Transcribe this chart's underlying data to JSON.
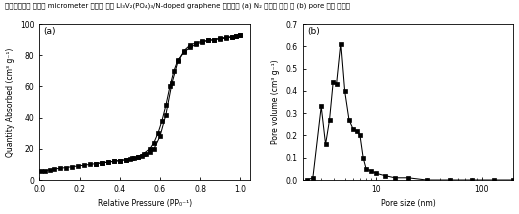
{
  "plot_a": {
    "label": "(a)",
    "xlabel": "Relative Pressure (PP₀⁻¹)",
    "ylabel": "Quantity Absorbed (cm³ g⁻¹)",
    "xlim": [
      0.0,
      1.05
    ],
    "ylim": [
      0,
      100
    ],
    "xticks": [
      0.0,
      0.2,
      0.4,
      0.6,
      0.8,
      1.0
    ],
    "yticks": [
      0,
      20,
      40,
      60,
      80,
      100
    ],
    "adsorption_x": [
      0.01,
      0.03,
      0.05,
      0.07,
      0.1,
      0.13,
      0.16,
      0.19,
      0.22,
      0.25,
      0.28,
      0.31,
      0.34,
      0.37,
      0.4,
      0.43,
      0.46,
      0.49,
      0.52,
      0.55,
      0.57,
      0.59,
      0.61,
      0.63,
      0.65,
      0.67,
      0.69,
      0.72,
      0.75,
      0.78,
      0.81,
      0.84,
      0.87,
      0.9,
      0.93,
      0.96,
      0.98,
      1.0
    ],
    "adsorption_y": [
      5.5,
      6.0,
      6.5,
      7.0,
      7.5,
      8.0,
      8.5,
      9.0,
      9.5,
      10.0,
      10.5,
      11.0,
      11.5,
      12.0,
      12.5,
      13.0,
      14.0,
      15.0,
      17.0,
      20.0,
      24.0,
      30.0,
      38.0,
      48.0,
      60.0,
      70.0,
      77.0,
      82.0,
      85.0,
      87.0,
      88.5,
      89.5,
      90.0,
      91.0,
      91.5,
      92.0,
      92.5,
      93.0
    ],
    "desorption_x": [
      1.0,
      0.98,
      0.96,
      0.93,
      0.9,
      0.87,
      0.84,
      0.81,
      0.78,
      0.75,
      0.72,
      0.69,
      0.66,
      0.63,
      0.6,
      0.57,
      0.55,
      0.53,
      0.51,
      0.49,
      0.47,
      0.45,
      0.43,
      0.4,
      0.37,
      0.34,
      0.31,
      0.28
    ],
    "desorption_y": [
      93.0,
      92.5,
      91.8,
      91.0,
      90.5,
      90.0,
      89.5,
      89.0,
      88.0,
      86.5,
      83.0,
      76.0,
      62.0,
      42.0,
      28.0,
      20.0,
      18.0,
      16.5,
      15.5,
      14.5,
      14.0,
      13.5,
      13.0,
      12.5,
      12.0,
      11.5,
      11.0,
      10.5
    ]
  },
  "plot_b": {
    "label": "(b)",
    "xlabel": "Pore size (nm)",
    "ylabel": "Pore volume (cm³ g⁻¹)",
    "xlim": [
      2,
      200
    ],
    "ylim": [
      0.0,
      0.7
    ],
    "yticks": [
      0.0,
      0.1,
      0.2,
      0.3,
      0.4,
      0.5,
      0.6,
      0.7
    ],
    "pore_x": [
      2.2,
      2.5,
      3.0,
      3.3,
      3.6,
      3.9,
      4.2,
      4.6,
      5.0,
      5.5,
      6.0,
      6.5,
      7.0,
      7.5,
      8.0,
      9.0,
      10.0,
      12.0,
      15.0,
      20.0,
      30.0,
      50.0,
      80.0,
      130.0,
      200.0
    ],
    "pore_y": [
      0.0,
      0.01,
      0.33,
      0.16,
      0.27,
      0.44,
      0.43,
      0.61,
      0.4,
      0.27,
      0.23,
      0.22,
      0.2,
      0.1,
      0.05,
      0.04,
      0.03,
      0.02,
      0.01,
      0.01,
      0.0,
      0.0,
      0.0,
      0.0,
      0.0
    ]
  },
  "marker": "s",
  "markersize": 2.5,
  "linewidth": 0.75,
  "color": "black",
  "background": "white",
  "figure_width": 5.19,
  "figure_height": 2.14,
  "dpi": 100,
  "title_text": "분무건조법을 이용한 micrometer 크기의 구형 Li₃V₂(PO₄)₃/N-doped graphene 복합소재 (a) N₂ 흡탈착 곡선 및 (b) pore 크기 분포도",
  "title_fontsize": 5
}
